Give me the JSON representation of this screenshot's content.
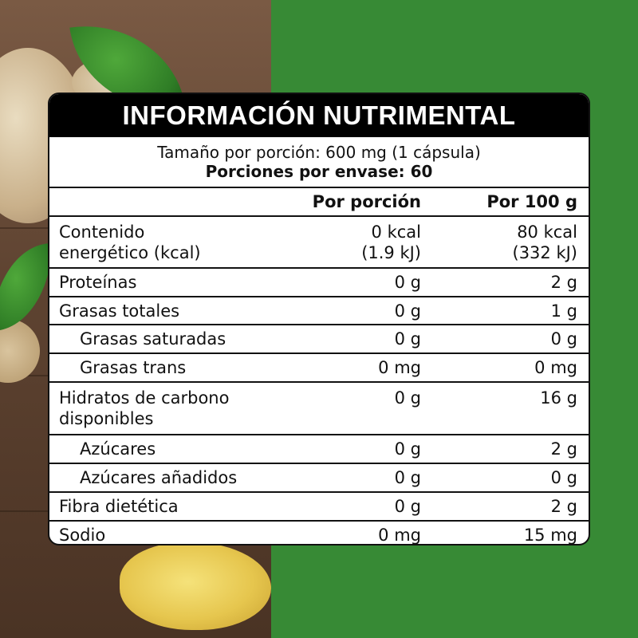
{
  "label": {
    "title": "INFORMACIÓN NUTRIMENTAL",
    "serving_size": "Tamaño por porción: 600 mg (1 cápsula)",
    "servings_per_container": "Porciones por envase: 60",
    "columns": {
      "per_serving": "Por porción",
      "per_100g": "Por 100 g"
    },
    "rows": [
      {
        "name_line1": "Contenido",
        "name_line2": "energético (kcal)",
        "per_serving_line1": "0 kcal",
        "per_serving_line2": "(1.9 kJ)",
        "per_100g_line1": "80 kcal",
        "per_100g_line2": "(332 kJ)"
      },
      {
        "name": "Proteínas",
        "per_serving": "0 g",
        "per_100g": "2 g"
      },
      {
        "name": "Grasas totales",
        "per_serving": "0 g",
        "per_100g": "1 g"
      },
      {
        "name": "Grasas saturadas",
        "per_serving": "0 g",
        "per_100g": "0 g"
      },
      {
        "name": "Grasas trans",
        "per_serving": "0 mg",
        "per_100g": "0 mg"
      },
      {
        "name_line1": "Hidratos de carbono",
        "name_line2": "disponibles",
        "per_serving": "0 g",
        "per_100g": "16 g"
      },
      {
        "name": "Azúcares",
        "per_serving": "0 g",
        "per_100g": "2 g"
      },
      {
        "name": "Azúcares añadidos",
        "per_serving": "0 g",
        "per_100g": "0 g"
      },
      {
        "name": "Fibra dietética",
        "per_serving": "0 g",
        "per_100g": "2 g"
      },
      {
        "name": "Sodio",
        "per_serving": "0 mg",
        "per_100g": "15 mg"
      }
    ]
  },
  "colors": {
    "background_green": "#378a35",
    "header_black": "#000000",
    "text": "#111111"
  },
  "background": {
    "image": "ginger-root-and-leaves-on-wood"
  }
}
